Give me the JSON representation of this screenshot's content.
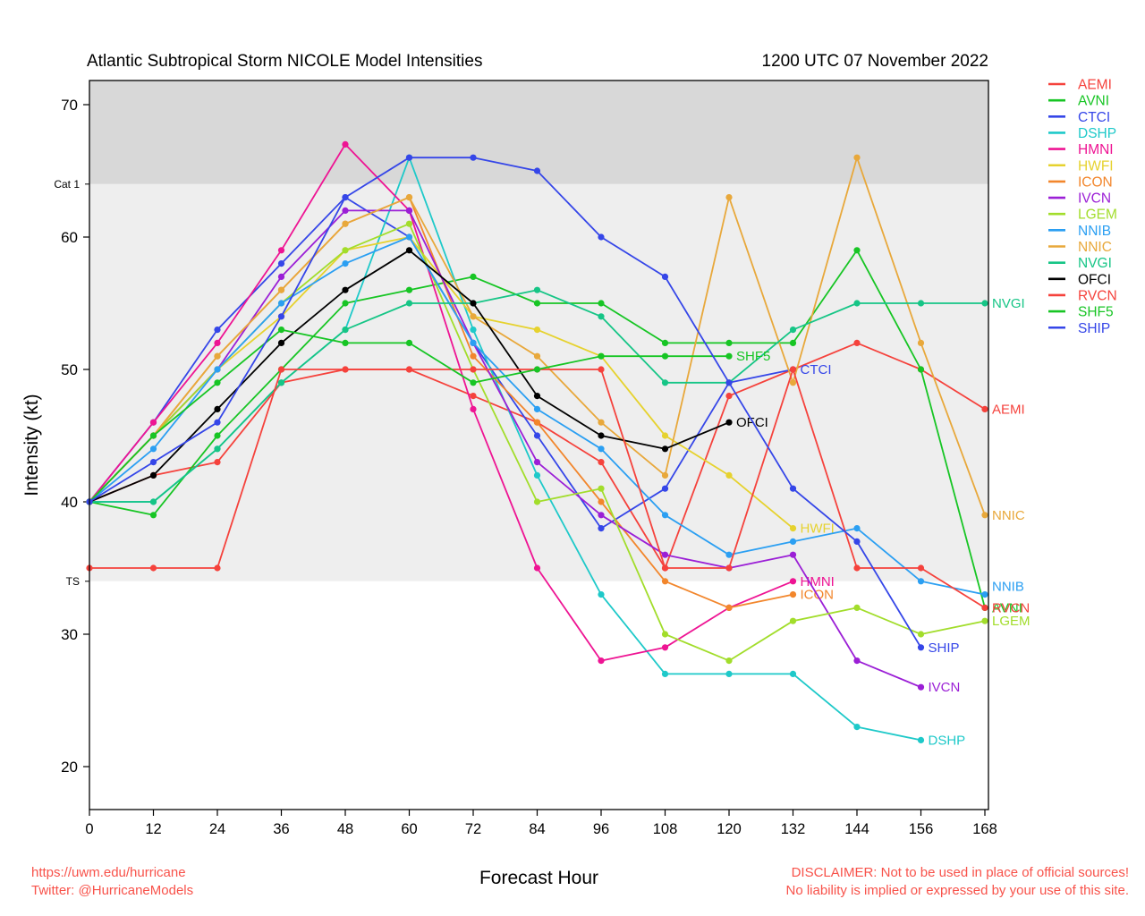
{
  "header": {
    "title": "Atlantic Subtropical Storm NICOLE Model Intensities",
    "datetime": "1200 UTC 07 November 2022"
  },
  "footer": {
    "url": "https://uwm.edu/hurricane",
    "twitter": "Twitter: @HurricaneModels",
    "disclaimer_line1": "DISCLAIMER: Not to be used in place of official sources!",
    "disclaimer_line2": "No liability is implied or expressed by your use of this site."
  },
  "colors": {
    "band_above_cat1": "#d8d8d8",
    "band_ts_to_cat1": "#eeeeee",
    "band_below_ts": "#ffffff",
    "footer_text": "#f8524a",
    "axis": "#000000"
  },
  "chart_data": {
    "type": "line",
    "title": "Atlantic Subtropical Storm NICOLE Model Intensities",
    "xlabel": "Forecast Hour",
    "ylabel": "Intensity (kt)",
    "x": [
      0,
      12,
      24,
      36,
      48,
      60,
      72,
      84,
      96,
      108,
      120,
      132,
      144,
      156,
      168
    ],
    "xticks": [
      0,
      12,
      24,
      36,
      48,
      60,
      72,
      84,
      96,
      108,
      120,
      132,
      144,
      156,
      168
    ],
    "yticks": [
      20,
      30,
      40,
      50,
      60,
      70
    ],
    "ylim": [
      16.8,
      71.8
    ],
    "grid": false,
    "legend_position": "right",
    "thresholds": [
      {
        "label": "Cat 1",
        "value": 64
      },
      {
        "label": "TS",
        "value": 34
      }
    ],
    "series": [
      {
        "name": "AEMI",
        "color": "#f5423c",
        "values": [
          40,
          42,
          43,
          49,
          50,
          50,
          48,
          46,
          43,
          35,
          48,
          50,
          52,
          50,
          47
        ],
        "end_label": true
      },
      {
        "name": "AVNI",
        "color": "#17c524",
        "values": [
          40,
          39,
          45,
          50,
          55,
          56,
          57,
          55,
          55,
          52,
          52,
          52,
          59,
          50,
          32
        ],
        "end_label": true
      },
      {
        "name": "CTCI",
        "color": "#3546e8",
        "values": [
          40,
          46,
          53,
          58,
          63,
          60,
          52,
          45,
          38,
          41,
          49,
          50
        ],
        "end_label": true
      },
      {
        "name": "DSHP",
        "color": "#1ec9c9",
        "values": [
          40,
          40,
          44,
          49,
          53,
          66,
          53,
          42,
          33,
          27,
          27,
          27,
          23,
          22
        ],
        "end_label": true
      },
      {
        "name": "HMNI",
        "color": "#ee1493",
        "values": [
          40,
          46,
          52,
          59,
          67,
          62,
          47,
          35,
          28,
          29,
          32,
          34
        ],
        "end_label": true
      },
      {
        "name": "HWFI",
        "color": "#e6d22e",
        "values": [
          40,
          45,
          50,
          54,
          59,
          60,
          54,
          53,
          51,
          45,
          42,
          38
        ],
        "end_label": true
      },
      {
        "name": "ICON",
        "color": "#f2862c",
        "values": [
          40,
          45,
          51,
          56,
          61,
          63,
          51,
          46,
          40,
          34,
          32,
          33
        ],
        "end_label": true
      },
      {
        "name": "IVCN",
        "color": "#9b1fd6",
        "values": [
          40,
          45,
          50,
          57,
          62,
          62,
          52,
          43,
          39,
          36,
          35,
          36,
          28,
          26
        ],
        "end_label": true
      },
      {
        "name": "LGEM",
        "color": "#a2dd2b",
        "values": [
          40,
          45,
          50,
          55,
          59,
          61,
          50,
          40,
          41,
          30,
          28,
          31,
          32,
          30,
          31
        ],
        "end_label": true
      },
      {
        "name": "NNIB",
        "color": "#2b9ff2",
        "values": [
          40,
          44,
          50,
          55,
          58,
          60,
          52,
          47,
          44,
          39,
          36,
          37,
          38,
          34,
          33
        ],
        "end_label": true,
        "label_dy": -9
      },
      {
        "name": "NNIC",
        "color": "#e8a83b",
        "values": [
          40,
          45,
          51,
          56,
          61,
          63,
          54,
          51,
          46,
          42,
          63,
          49,
          66,
          52,
          39
        ],
        "end_label": true
      },
      {
        "name": "NVGI",
        "color": "#16c586",
        "values": [
          40,
          40,
          44,
          49,
          53,
          55,
          55,
          56,
          54,
          49,
          49,
          53,
          55,
          55,
          55
        ],
        "end_label": true
      },
      {
        "name": "OFCI",
        "color": "#000000",
        "values": [
          40,
          42,
          47,
          52,
          56,
          59,
          55,
          48,
          45,
          44,
          46
        ],
        "end_label": true
      },
      {
        "name": "RVCN",
        "color": "#f5423c",
        "values": [
          35,
          35,
          35,
          50,
          50,
          50,
          50,
          50,
          50,
          35,
          35,
          50,
          35,
          35,
          32
        ],
        "end_label": true
      },
      {
        "name": "SHF5",
        "color": "#17c524",
        "values": [
          40,
          45,
          49,
          53,
          52,
          52,
          49,
          50,
          51,
          51,
          51
        ],
        "end_label": true
      },
      {
        "name": "SHIP",
        "color": "#3546e8",
        "values": [
          40,
          43,
          46,
          54,
          63,
          66,
          66,
          65,
          60,
          57,
          49,
          41,
          37,
          29
        ],
        "end_label": true
      }
    ]
  }
}
